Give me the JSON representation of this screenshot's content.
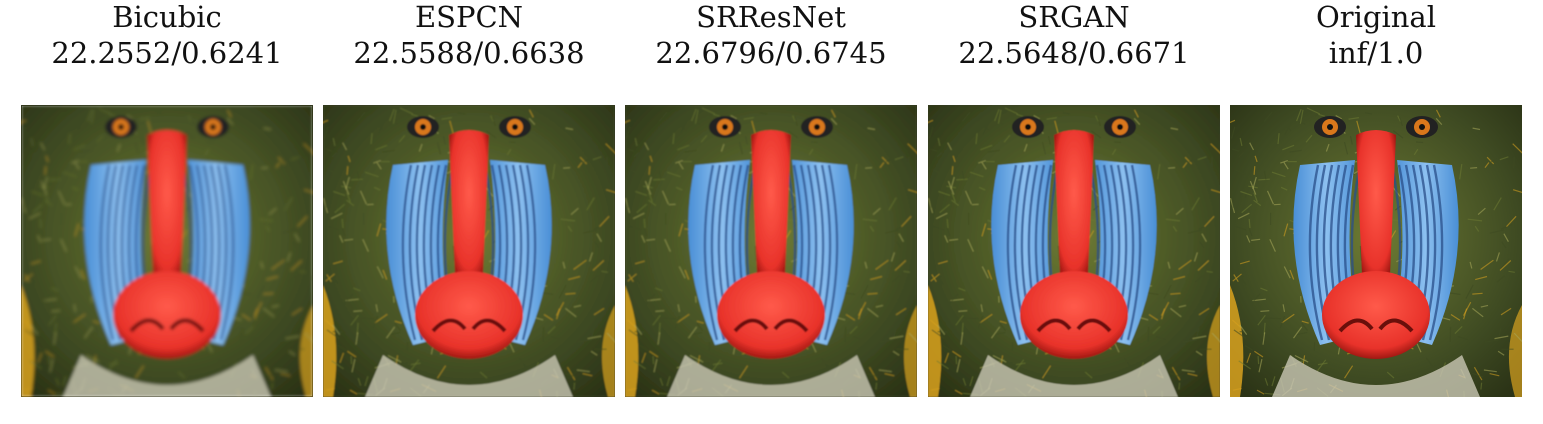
{
  "panels": [
    {
      "method": "Bicubic",
      "score": "22.2552/0.6241",
      "blur": 1.6
    },
    {
      "method": "ESPCN",
      "score": "22.5588/0.6638",
      "blur": 0.9
    },
    {
      "method": "SRResNet",
      "score": "22.6796/0.6745",
      "blur": 0.7
    },
    {
      "method": "SRGAN",
      "score": "22.5648/0.6671",
      "blur": 0.4
    },
    {
      "method": "Original",
      "score": "inf/1.0",
      "blur": 0.0
    }
  ],
  "colors": {
    "fur_dark": "#3e4a22",
    "fur_mid": "#6d7a33",
    "fur_light": "#a8a85a",
    "cheek_blue": "#4a8fd6",
    "cheek_light": "#8cc0f0",
    "nose_red": "#e8322a",
    "nose_dark": "#a01812",
    "eye_orange": "#d9771b",
    "beard_light": "#c9c7b4",
    "fur_yellow": "#d9a21f"
  }
}
